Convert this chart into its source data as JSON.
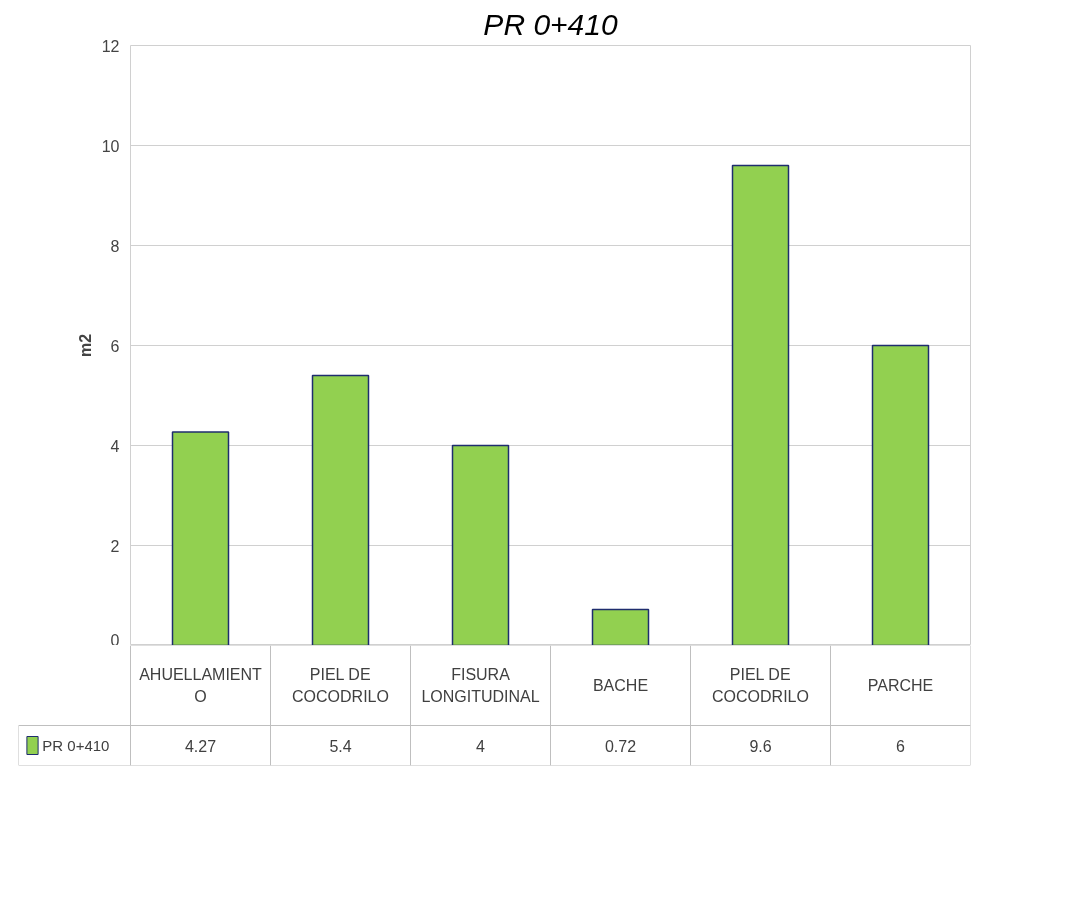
{
  "chart_data": {
    "type": "bar",
    "title": "PR 0+410",
    "ylabel": "m2",
    "categories": [
      "AHUELLAMIENTO",
      "PIEL DE COCODRILO",
      "FISURA LONGITUDINAL",
      "BACHE",
      "PIEL DE COCODRILO",
      "PARCHE"
    ],
    "series": [
      {
        "name": "PR 0+410",
        "color": "#92d050",
        "values": [
          4.27,
          5.4,
          4,
          0.72,
          9.6,
          6
        ]
      }
    ],
    "ylim": [
      0,
      12
    ],
    "yticks": [
      0,
      2,
      4,
      6,
      8,
      10,
      12
    ],
    "grid": "y",
    "data_labels": true,
    "legend": "bottom"
  }
}
